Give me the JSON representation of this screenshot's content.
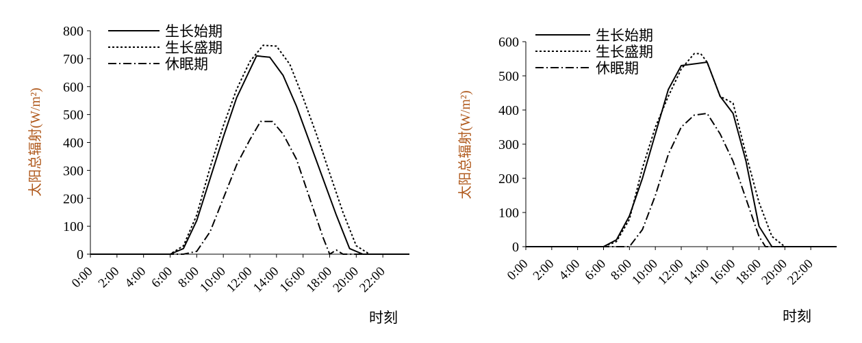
{
  "chart_data": [
    {
      "type": "line",
      "ylabel": "太阳总辐射(W/m²)",
      "xlabel": "时刻",
      "xticks": [
        "0:00",
        "2:00",
        "4:00",
        "6:00",
        "8:00",
        "10:00",
        "12:00",
        "14:00",
        "16:00",
        "18:00",
        "20:00",
        "22:00"
      ],
      "yticks": [
        0,
        100,
        200,
        300,
        400,
        500,
        600,
        700,
        800
      ],
      "ylim": [
        0,
        800
      ],
      "xlim": [
        0,
        24
      ],
      "legend_position": "top-left",
      "grid": false,
      "series": [
        {
          "name": "生长始期",
          "style": "solid",
          "x": [
            0,
            6,
            7,
            8,
            9,
            10,
            11,
            12,
            12.5,
            13.5,
            14.5,
            15.5,
            16.5,
            17.5,
            18.5,
            19.5,
            20.5,
            21,
            22,
            24
          ],
          "y": [
            0,
            0,
            20,
            120,
            270,
            420,
            560,
            660,
            710,
            705,
            640,
            530,
            400,
            270,
            140,
            20,
            0,
            0,
            0,
            0
          ]
        },
        {
          "name": "生长盛期",
          "style": "dotted",
          "x": [
            0,
            6,
            7,
            8,
            9,
            10,
            11,
            12,
            13,
            14,
            15,
            16,
            17,
            18,
            19,
            20,
            21,
            22,
            24
          ],
          "y": [
            0,
            0,
            30,
            140,
            310,
            460,
            590,
            690,
            748,
            745,
            680,
            560,
            430,
            290,
            150,
            30,
            0,
            0,
            0
          ]
        },
        {
          "name": "休眠期",
          "style": "dashdot",
          "x": [
            0,
            7,
            8,
            9,
            10,
            11,
            12,
            12.8,
            13.7,
            14.5,
            15.5,
            16.5,
            17.5,
            18,
            18.5,
            19,
            24
          ],
          "y": [
            0,
            0,
            10,
            80,
            200,
            320,
            410,
            475,
            475,
            430,
            340,
            200,
            60,
            0,
            15,
            0,
            0
          ]
        }
      ]
    },
    {
      "type": "line",
      "ylabel": "太阳总辐射(W/m²)",
      "xlabel": "时刻",
      "xticks": [
        "0:00",
        "2:00",
        "4:00",
        "6:00",
        "8:00",
        "10:00",
        "12:00",
        "14:00",
        "16:00",
        "18:00",
        "20:00",
        "22:00"
      ],
      "yticks": [
        0,
        100,
        200,
        300,
        400,
        500,
        600
      ],
      "ylim": [
        0,
        600
      ],
      "xlim": [
        0,
        24
      ],
      "legend_position": "top-left",
      "grid": false,
      "series": [
        {
          "name": "生长始期",
          "style": "solid",
          "x": [
            0,
            6,
            7,
            8,
            9,
            10,
            11,
            12,
            13,
            14,
            15,
            16,
            17,
            18,
            19,
            20,
            24
          ],
          "y": [
            0,
            0,
            20,
            90,
            200,
            330,
            460,
            530,
            535,
            540,
            440,
            390,
            250,
            60,
            0,
            0,
            0
          ]
        },
        {
          "name": "生长盛期",
          "style": "dotted",
          "x": [
            0,
            6,
            7,
            8,
            9,
            10,
            11,
            12,
            13,
            13.5,
            14,
            15,
            16,
            17,
            18,
            19,
            20,
            24
          ],
          "y": [
            0,
            0,
            15,
            80,
            230,
            350,
            440,
            520,
            565,
            565,
            540,
            440,
            420,
            270,
            130,
            30,
            0,
            0
          ]
        },
        {
          "name": "休眠期",
          "style": "dashdot",
          "x": [
            0,
            8,
            9,
            10,
            11,
            12,
            13,
            14,
            15,
            16,
            17,
            18,
            18.5,
            19,
            24
          ],
          "y": [
            0,
            0,
            50,
            150,
            270,
            350,
            385,
            390,
            330,
            250,
            140,
            30,
            0,
            0,
            0
          ]
        }
      ]
    }
  ]
}
